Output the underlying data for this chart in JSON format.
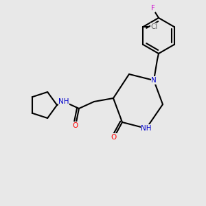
{
  "bg_color": "#e8e8e8",
  "bond_color": "#000000",
  "bond_lw": 1.5,
  "atom_colors": {
    "N": "#0000cc",
    "O": "#ff0000",
    "Cl": "#606060",
    "F": "#cc00cc",
    "NH": "#0000cc",
    "H": "#0000cc"
  },
  "font_size": 7.5,
  "font_size_small": 6.5
}
